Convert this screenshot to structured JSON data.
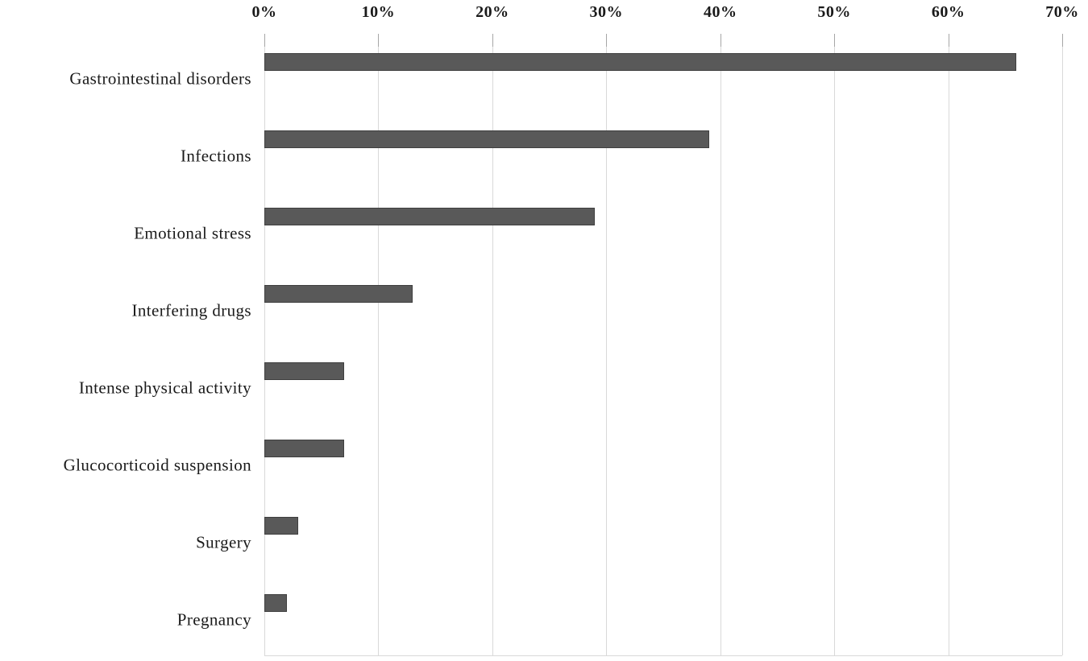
{
  "chart_data": {
    "type": "bar",
    "orientation": "horizontal",
    "categories": [
      "Gastrointestinal disorders",
      "Infections",
      "Emotional stress",
      "Interfering drugs",
      "Intense physical activity",
      "Glucocorticoid suspension",
      "Surgery",
      "Pregnancy"
    ],
    "values": [
      66,
      39,
      29,
      13,
      7,
      7,
      3,
      2
    ],
    "value_unit": "%",
    "x_tick_labels": [
      "0%",
      "10%",
      "20%",
      "30%",
      "40%",
      "50%",
      "60%",
      "70%"
    ],
    "xlim": [
      0,
      70
    ],
    "x_tick_step": 10,
    "legend": "none",
    "grid": "vertical-only",
    "axis_position": "top",
    "colors": {
      "bar_fill": "#595959",
      "bar_border": "#3f3f3f",
      "gridline": "#d9d9d9",
      "tick": "#a6a6a6",
      "text": "#1a1a1a",
      "background": "#ffffff"
    }
  }
}
